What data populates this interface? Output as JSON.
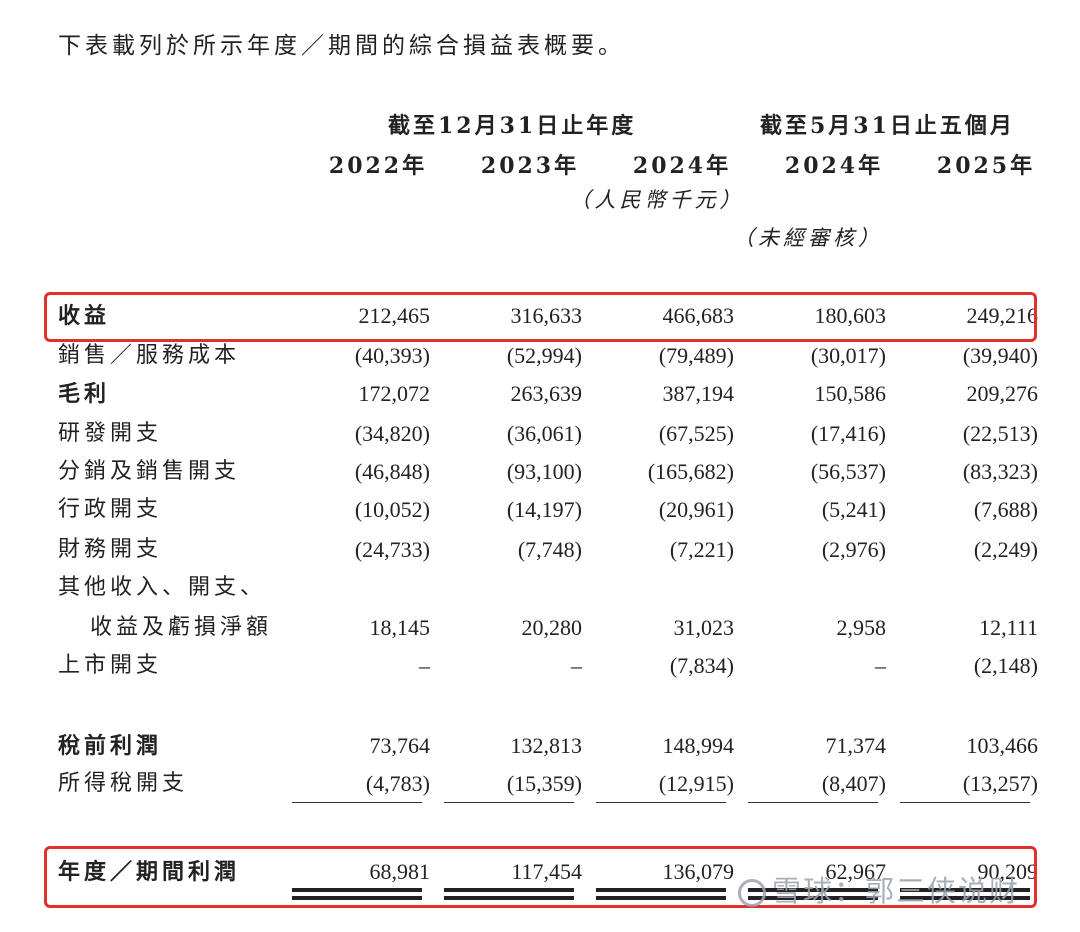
{
  "intro": "下表載列於所示年度／期間的綜合損益表概要。",
  "headers": {
    "group1": "截至12月31日止年度",
    "group2": "截至5月31日止五個月",
    "years": [
      "2022年",
      "2023年",
      "2024年",
      "2024年",
      "2025年"
    ],
    "unit": "（人民幣千元）",
    "unaudited": "（未經審核）"
  },
  "rows": [
    {
      "label": "收益",
      "values": [
        "212,465",
        "316,633",
        "466,683",
        "180,603",
        "249,216"
      ]
    },
    {
      "label": "銷售／服務成本",
      "values": [
        "(40,393)",
        "(52,994)",
        "(79,489)",
        "(30,017)",
        "(39,940)"
      ]
    },
    {
      "label": "毛利",
      "values": [
        "172,072",
        "263,639",
        "387,194",
        "150,586",
        "209,276"
      ]
    },
    {
      "label": "研發開支",
      "values": [
        "(34,820)",
        "(36,061)",
        "(67,525)",
        "(17,416)",
        "(22,513)"
      ]
    },
    {
      "label": "分銷及銷售開支",
      "values": [
        "(46,848)",
        "(93,100)",
        "(165,682)",
        "(56,537)",
        "(83,323)"
      ]
    },
    {
      "label": "行政開支",
      "values": [
        "(10,052)",
        "(14,197)",
        "(20,961)",
        "(5,241)",
        "(7,688)"
      ]
    },
    {
      "label": "財務開支",
      "values": [
        "(24,733)",
        "(7,748)",
        "(7,221)",
        "(2,976)",
        "(2,249)"
      ]
    },
    {
      "label": "其他收入、開支、",
      "values": [
        "",
        "",
        "",
        "",
        ""
      ]
    },
    {
      "label": "收益及虧損淨額",
      "values": [
        "18,145",
        "20,280",
        "31,023",
        "2,958",
        "12,111"
      ]
    },
    {
      "label": "上市開支",
      "values": [
        "–",
        "–",
        "(7,834)",
        "–",
        "(2,148)"
      ]
    },
    {
      "label": "稅前利潤",
      "values": [
        "73,764",
        "132,813",
        "148,994",
        "71,374",
        "103,466"
      ]
    },
    {
      "label": "所得稅開支",
      "values": [
        "(4,783)",
        "(15,359)",
        "(12,915)",
        "(8,407)",
        "(13,257)"
      ]
    },
    {
      "label": "年度／期間利潤",
      "values": [
        "68,981",
        "117,454",
        "136,079",
        "62,967",
        "90,209"
      ]
    }
  ],
  "watermark": "雪球：郭三侠说财"
}
